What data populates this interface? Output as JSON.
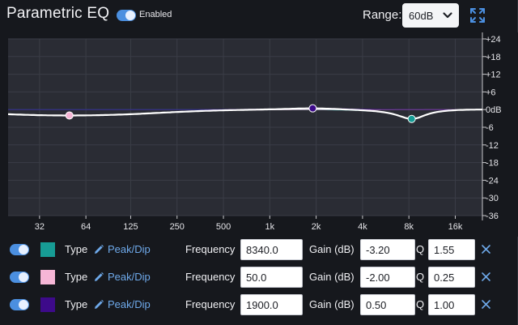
{
  "header": {
    "title": "Parametric EQ",
    "enabled_label": "Enabled",
    "enabled": true,
    "range_label": "Range:",
    "range_value": "60dB"
  },
  "colors": {
    "accent": "#4b8fe0",
    "link": "#6ea9ea",
    "curve": "#ffffff",
    "bands": [
      "#179c95",
      "#f6b6d6",
      "#3d0a8a"
    ]
  },
  "chart_data": {
    "type": "line",
    "x_scale": "log",
    "xlim": [
      20,
      24000
    ],
    "ylim": [
      -36,
      24
    ],
    "x_ticks": [
      {
        "value": 32,
        "label": "32"
      },
      {
        "value": 64,
        "label": "64"
      },
      {
        "value": 125,
        "label": "125"
      },
      {
        "value": 250,
        "label": "250"
      },
      {
        "value": 500,
        "label": "500"
      },
      {
        "value": 1000,
        "label": "1k"
      },
      {
        "value": 2000,
        "label": "2k"
      },
      {
        "value": 4000,
        "label": "4k"
      },
      {
        "value": 8000,
        "label": "8k"
      },
      {
        "value": 16000,
        "label": "16k"
      }
    ],
    "y_ticks": [
      {
        "value": 24,
        "label": "+24"
      },
      {
        "value": 18,
        "label": "+18"
      },
      {
        "value": 12,
        "label": "+12"
      },
      {
        "value": 6,
        "label": "+6"
      },
      {
        "value": 0,
        "label": "0dB"
      },
      {
        "value": -6,
        "label": "-6"
      },
      {
        "value": -12,
        "label": "-12"
      },
      {
        "value": -18,
        "label": "-18"
      },
      {
        "value": -24,
        "label": "-24"
      },
      {
        "value": -30,
        "label": "-30"
      },
      {
        "value": -36,
        "label": "-36"
      }
    ],
    "grid": true,
    "points": [
      {
        "band": 0,
        "freq": 8340,
        "gain": -3.2
      },
      {
        "band": 1,
        "freq": 50,
        "gain": -2.0
      },
      {
        "band": 2,
        "freq": 1900,
        "gain": 0.5
      }
    ]
  },
  "bands": [
    {
      "enabled": true,
      "type_label": "Type",
      "type": "Peak/Dip",
      "freq_label": "Frequency",
      "freq": "8340.0",
      "gain_label": "Gain (dB)",
      "gain": "-3.20",
      "q_label": "Q",
      "q": "1.55"
    },
    {
      "enabled": true,
      "type_label": "Type",
      "type": "Peak/Dip",
      "freq_label": "Frequency",
      "freq": "50.0",
      "gain_label": "Gain (dB)",
      "gain": "-2.00",
      "q_label": "Q",
      "q": "0.25"
    },
    {
      "enabled": true,
      "type_label": "Type",
      "type": "Peak/Dip",
      "freq_label": "Frequency",
      "freq": "1900.0",
      "gain_label": "Gain (dB)",
      "gain": "0.50",
      "q_label": "Q",
      "q": "1.00"
    }
  ]
}
